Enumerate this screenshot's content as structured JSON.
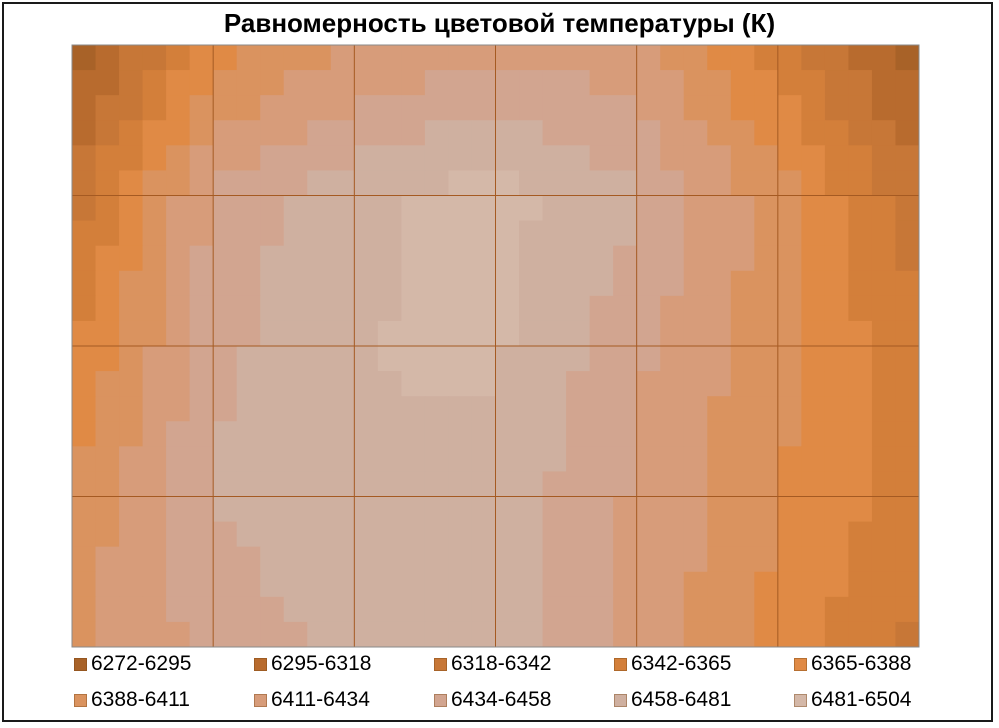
{
  "chart_data": {
    "type": "heatmap",
    "title": "Равномерность цветовой температуры (К)",
    "xlabel": "",
    "ylabel": "",
    "grid": true,
    "legend_position": "bottom",
    "columns": 7,
    "rows": 5,
    "values": [
      [
        6272,
        6375,
        6410,
        6430,
        6420,
        6350,
        6280
      ],
      [
        6330,
        6440,
        6475,
        6490,
        6460,
        6400,
        6325
      ],
      [
        6360,
        6450,
        6480,
        6485,
        6440,
        6395,
        6345
      ],
      [
        6390,
        6460,
        6480,
        6475,
        6430,
        6390,
        6350
      ],
      [
        6410,
        6440,
        6465,
        6470,
        6430,
        6380,
        6335
      ]
    ],
    "levels": [
      {
        "label": "6272-6295",
        "color": "#a86228"
      },
      {
        "label": "6295-6318",
        "color": "#b86b2e"
      },
      {
        "label": "6318-6342",
        "color": "#c77737"
      },
      {
        "label": "6342-6365",
        "color": "#d37f3a"
      },
      {
        "label": "6365-6388",
        "color": "#e08a45"
      },
      {
        "label": "6388-6411",
        "color": "#da935f"
      },
      {
        "label": "6411-6434",
        "color": "#d79c7a"
      },
      {
        "label": "6434-6458",
        "color": "#d2a590"
      },
      {
        "label": "6458-6481",
        "color": "#cfb0a0"
      },
      {
        "label": "6481-6504",
        "color": "#d4b8a8"
      }
    ]
  }
}
